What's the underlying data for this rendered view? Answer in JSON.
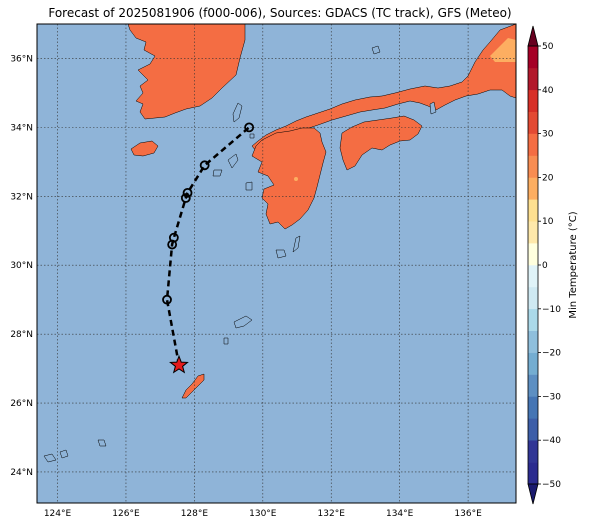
{
  "title": "Forecast of 2025081906 (f000-006), Sources: GDACS (TC track), GFS (Meteo)",
  "map": {
    "lon_range": [
      123.4,
      137.4
    ],
    "lat_range": [
      23.1,
      37.0
    ],
    "lon_ticks": [
      {
        "value": 124,
        "label": "124°E"
      },
      {
        "value": 126,
        "label": "126°E"
      },
      {
        "value": 128,
        "label": "128°E"
      },
      {
        "value": 130,
        "label": "130°E"
      },
      {
        "value": 132,
        "label": "132°E"
      },
      {
        "value": 134,
        "label": "134°E"
      },
      {
        "value": 136,
        "label": "136°E"
      }
    ],
    "lat_ticks": [
      {
        "value": 24,
        "label": "24°N"
      },
      {
        "value": 26,
        "label": "26°N"
      },
      {
        "value": 28,
        "label": "28°N"
      },
      {
        "value": 30,
        "label": "30°N"
      },
      {
        "value": 32,
        "label": "32°N"
      },
      {
        "value": 34,
        "label": "34°N"
      },
      {
        "value": 36,
        "label": "36°N"
      }
    ],
    "grid": true,
    "colors": {
      "ocean": "#8fb4d8",
      "land": "#f46d43",
      "land_warm": "#fdae61",
      "track": "#000000",
      "star": "#e41a1c"
    }
  },
  "track": {
    "points": [
      {
        "lon": 127.55,
        "lat": 27.1,
        "marker": "star"
      },
      {
        "lon": 127.2,
        "lat": 29.0,
        "marker": "circle"
      },
      {
        "lon": 127.35,
        "lat": 30.6,
        "marker": "circle"
      },
      {
        "lon": 127.4,
        "lat": 30.8,
        "marker": "circle"
      },
      {
        "lon": 127.75,
        "lat": 31.95,
        "marker": "circle"
      },
      {
        "lon": 127.8,
        "lat": 32.1,
        "marker": "circle"
      },
      {
        "lon": 128.3,
        "lat": 32.9,
        "marker": "circle"
      },
      {
        "lon": 129.6,
        "lat": 34.0,
        "marker": "circle"
      }
    ]
  },
  "colorbar": {
    "label": "Min Temperature (°C)",
    "ticks": [
      {
        "value": 50,
        "label": "50"
      },
      {
        "value": 40,
        "label": "40"
      },
      {
        "value": 30,
        "label": "30"
      },
      {
        "value": 20,
        "label": "20"
      },
      {
        "value": 10,
        "label": "10"
      },
      {
        "value": 0,
        "label": "0"
      },
      {
        "value": -10,
        "label": "−10"
      },
      {
        "value": -20,
        "label": "−20"
      },
      {
        "value": -30,
        "label": "−30"
      },
      {
        "value": -40,
        "label": "−40"
      },
      {
        "value": -50,
        "label": "−50"
      }
    ],
    "bands": [
      {
        "from": -50,
        "to": -45,
        "color": "#2b2b8f"
      },
      {
        "from": -45,
        "to": -40,
        "color": "#313695"
      },
      {
        "from": -40,
        "to": -35,
        "color": "#3d5ea8"
      },
      {
        "from": -35,
        "to": -30,
        "color": "#4575b4"
      },
      {
        "from": -30,
        "to": -25,
        "color": "#5d8fc2"
      },
      {
        "from": -25,
        "to": -20,
        "color": "#74add1"
      },
      {
        "from": -20,
        "to": -15,
        "color": "#8fbfdc"
      },
      {
        "from": -15,
        "to": -10,
        "color": "#abd9e9"
      },
      {
        "from": -10,
        "to": -5,
        "color": "#cfe9f2"
      },
      {
        "from": -5,
        "to": 0,
        "color": "#e0f3f8"
      },
      {
        "from": 0,
        "to": 5,
        "color": "#ffffde"
      },
      {
        "from": 5,
        "to": 10,
        "color": "#fee8aa"
      },
      {
        "from": 10,
        "to": 15,
        "color": "#fee090"
      },
      {
        "from": 15,
        "to": 20,
        "color": "#fdae61"
      },
      {
        "from": 20,
        "to": 25,
        "color": "#f88d52"
      },
      {
        "from": 25,
        "to": 30,
        "color": "#f46d43"
      },
      {
        "from": 30,
        "to": 35,
        "color": "#e34a33"
      },
      {
        "from": 35,
        "to": 40,
        "color": "#d73027"
      },
      {
        "from": 40,
        "to": 45,
        "color": "#b2182b"
      },
      {
        "from": 45,
        "to": 50,
        "color": "#a50026"
      }
    ],
    "extend_colors": {
      "max": "#67001f",
      "min": "#1a1a6e"
    }
  }
}
